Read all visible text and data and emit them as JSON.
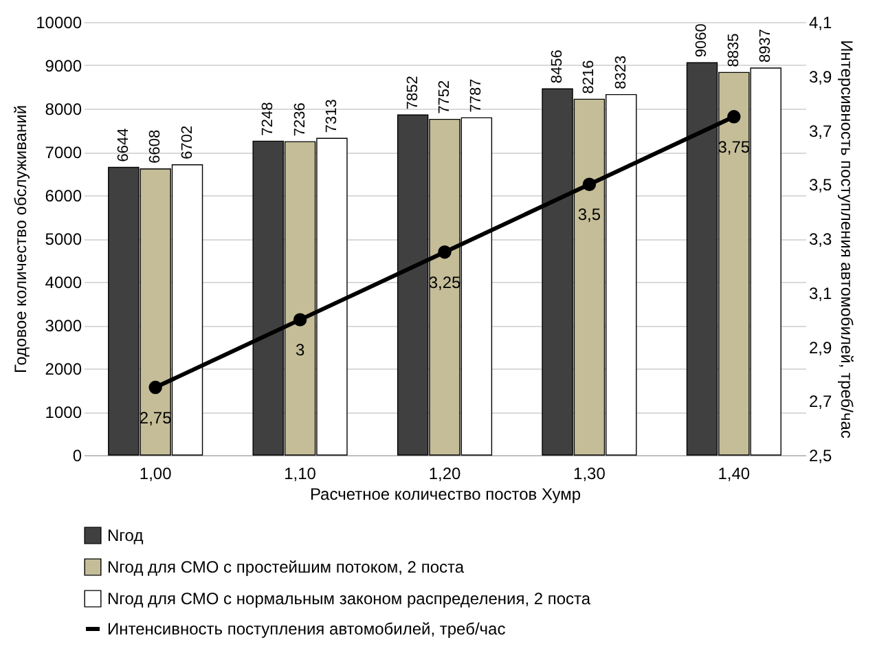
{
  "chart_data": {
    "type": "bar",
    "categories": [
      "1,00",
      "1,10",
      "1,20",
      "1,30",
      "1,40"
    ],
    "xlabel": "Расчетное количество постов Хумр",
    "ylabel": "Годовое количество обслуживаний",
    "y2label": "Интерсивность поступления автомобилей, треб/час",
    "series": [
      {
        "name": "Nгод",
        "color": "#404040",
        "values": [
          6644,
          7248,
          7852,
          8456,
          9060
        ],
        "value_labels": [
          "6644",
          "7248",
          "7852",
          "8456",
          "9060"
        ]
      },
      {
        "name": "Nгод для СМО с простейшим потоком, 2 поста",
        "color": "#c4bd97",
        "values": [
          6608,
          7236,
          7752,
          8216,
          8835
        ],
        "value_labels": [
          "6608",
          "7236",
          "7752",
          "8216",
          "8835"
        ]
      },
      {
        "name": "Nгод для СМО с нормальным законом распределения, 2 поста",
        "color": "#ffffff",
        "values": [
          6702,
          7313,
          7787,
          8323,
          8937
        ],
        "value_labels": [
          "6702",
          "7313",
          "7787",
          "8323",
          "8937"
        ]
      },
      {
        "name": "Интенсивность поступления автомобилей, треб/час",
        "type": "line",
        "axis": "y2",
        "color": "#000000",
        "values": [
          2.75,
          3,
          3.25,
          3.5,
          3.75
        ],
        "value_labels": [
          "2,75",
          "3",
          "3,25",
          "3,5",
          "3,75"
        ]
      }
    ],
    "ylim": [
      0,
      10000
    ],
    "yticks": [
      0,
      1000,
      2000,
      3000,
      4000,
      5000,
      6000,
      7000,
      8000,
      9000,
      10000
    ],
    "y2lim": [
      2.5,
      4.1
    ],
    "y2ticks": [
      {
        "value": 2.5,
        "label": "2,5"
      },
      {
        "value": 2.7,
        "label": "2,7"
      },
      {
        "value": 2.9,
        "label": "2,9"
      },
      {
        "value": 3.1,
        "label": "3,1"
      },
      {
        "value": 3.3,
        "label": "3,3"
      },
      {
        "value": 3.5,
        "label": "3,5"
      },
      {
        "value": 3.7,
        "label": "3,7"
      },
      {
        "value": 3.9,
        "label": "3,9"
      },
      {
        "value": 4.1,
        "label": "4,1"
      }
    ],
    "grid": "y",
    "legend": "bottom",
    "marker": "circle"
  }
}
